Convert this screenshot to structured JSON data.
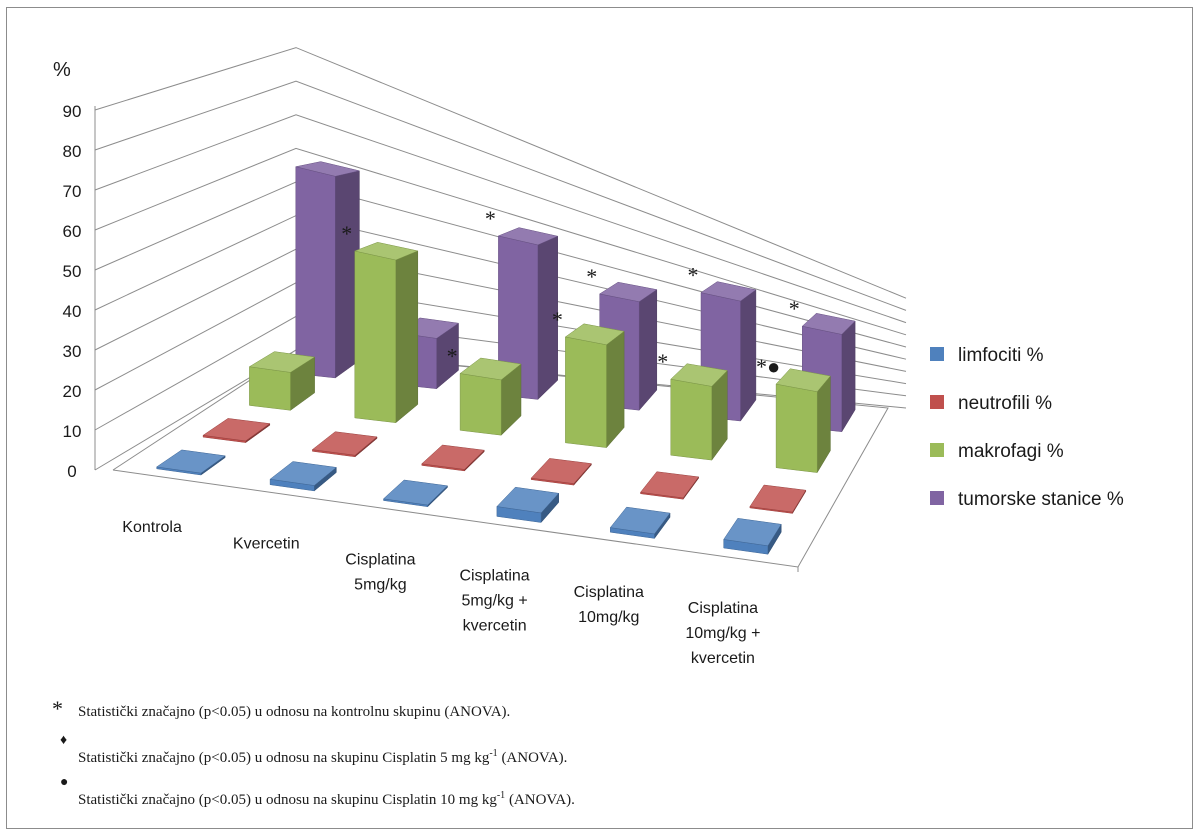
{
  "chart_data": {
    "type": "bar",
    "projection": "3d-clustered",
    "y_unit_label": "%",
    "ylim": [
      0,
      90
    ],
    "yticks": [
      "0",
      "10",
      "20",
      "30",
      "40",
      "50",
      "60",
      "70",
      "80",
      "90"
    ],
    "grid": true,
    "legend_position": "right",
    "categories": [
      [
        "Kontrola"
      ],
      [
        "Kvercetin"
      ],
      [
        "Cisplatina",
        "5mg/kg"
      ],
      [
        "Cisplatina",
        "5mg/kg +",
        "kvercetin"
      ],
      [
        "Cisplatina",
        "10mg/kg"
      ],
      [
        "Cisplatina",
        "10mg/kg +",
        "kvercetin"
      ]
    ],
    "series": [
      {
        "name": "limfociti %",
        "color": "#4f81bd",
        "values": [
          0.5,
          1.5,
          0.5,
          3,
          1.5,
          3
        ]
      },
      {
        "name": "neutrofili %",
        "color": "#c0504d",
        "values": [
          0.5,
          0.5,
          0.5,
          0.5,
          0.5,
          0.5
        ]
      },
      {
        "name": "makrofagi %",
        "color": "#9bbb59",
        "values": [
          12,
          55,
          20,
          40,
          31,
          37
        ]
      },
      {
        "name": "tumorske stanice %",
        "color": "#8064a2",
        "values": [
          71,
          19,
          63,
          48,
          58,
          52
        ]
      }
    ],
    "annotations": [
      {
        "category": 1,
        "series": 2,
        "text": "*"
      },
      {
        "category": 1,
        "series": 3,
        "text": "*"
      },
      {
        "category": 2,
        "series": 2,
        "text": "*"
      },
      {
        "category": 2,
        "series": 3,
        "text": "*"
      },
      {
        "category": 3,
        "series": 2,
        "text": "*"
      },
      {
        "category": 3,
        "series": 3,
        "text": "*"
      },
      {
        "category": 4,
        "series": 2,
        "text": "*"
      },
      {
        "category": 4,
        "series": 3,
        "text": "*"
      },
      {
        "category": 5,
        "series": 2,
        "text": "*●"
      },
      {
        "category": 5,
        "series": 3,
        "text": "*"
      }
    ]
  },
  "footnotes": [
    {
      "symbol": "*",
      "text": "Statistički značajno (p<0.05) u odnosu na kontrolnu skupinu (ANOVA)."
    },
    {
      "symbol": "♦",
      "text": "Statistički značajno (p<0.05) u odnosu na skupinu Cisplatin 5 mg kg",
      "sup": "-1",
      "tail": " (ANOVA)."
    },
    {
      "symbol": "●",
      "text": "Statistički značajno (p<0.05) u odnosu na skupinu Cisplatin 10 mg kg",
      "sup": "-1",
      "tail": " (ANOVA)."
    }
  ]
}
